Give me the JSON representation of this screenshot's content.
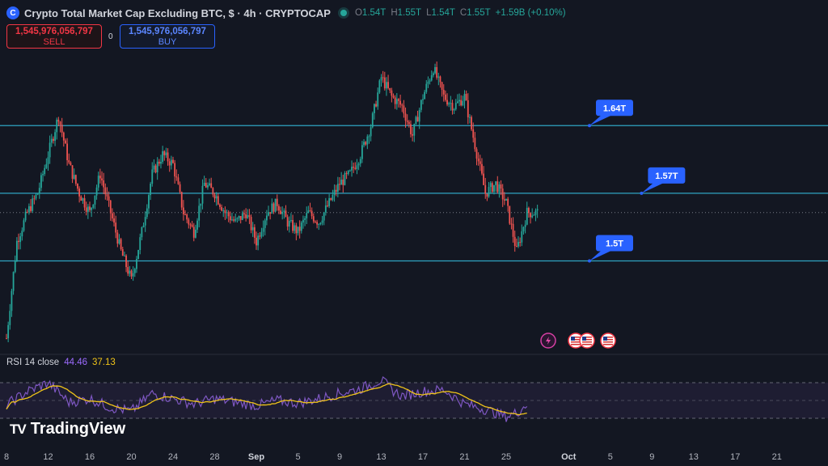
{
  "header": {
    "logo_glyph": "C",
    "title": "Crypto Total Market Cap Excluding BTC, $ · 4h · CRYPTOCAP",
    "ohlc": [
      {
        "key": "O",
        "value": "1.54T"
      },
      {
        "key": "H",
        "value": "1.55T"
      },
      {
        "key": "L",
        "value": "1.54T"
      },
      {
        "key": "C",
        "value": "1.55T"
      }
    ],
    "change": "+1.59B (+0.10%)"
  },
  "trade": {
    "sell_price": "1,545,976,056,797",
    "sell_label": "SELL",
    "spread": "0",
    "buy_price": "1,545,976,056,797",
    "buy_label": "BUY"
  },
  "rsi_legend": {
    "label": "RSI 14 close",
    "rsi_value": "44.46",
    "ma_value": "37.13"
  },
  "brand": {
    "name": "TradingView",
    "mark": "TV"
  },
  "colors": {
    "background": "#131722",
    "up": "#26a69a",
    "down": "#ef5350",
    "level_line": "#2fa4c2",
    "label_bg": "#2962ff",
    "rsi": "#7e57c2",
    "rsi_ma": "#f0c419"
  },
  "chart_data": {
    "type": "candlestick",
    "timeframe": "4h",
    "y_range": [
      1.41,
      1.77
    ],
    "x_range_day": [
      8,
      54
    ],
    "x_ticks": [
      "8",
      "12",
      "16",
      "20",
      "24",
      "28",
      "Sep",
      "5",
      "9",
      "13",
      "17",
      "21",
      "25",
      "Oct",
      "5",
      "9",
      "13",
      "17",
      "21"
    ],
    "x_tick_days": [
      8,
      12,
      16,
      20,
      24,
      28,
      32,
      36,
      40,
      44,
      48,
      52,
      56,
      62,
      66,
      70,
      74,
      78,
      82
    ],
    "anchors": [
      [
        8,
        1.42
      ],
      [
        9,
        1.52
      ],
      [
        10,
        1.55
      ],
      [
        11,
        1.57
      ],
      [
        13,
        1.65
      ],
      [
        14,
        1.6
      ],
      [
        15,
        1.57
      ],
      [
        16,
        1.55
      ],
      [
        17,
        1.59
      ],
      [
        18,
        1.55
      ],
      [
        19,
        1.51
      ],
      [
        20,
        1.48
      ],
      [
        21,
        1.53
      ],
      [
        22,
        1.59
      ],
      [
        23,
        1.61
      ],
      [
        24,
        1.6
      ],
      [
        25,
        1.55
      ],
      [
        26,
        1.53
      ],
      [
        27,
        1.58
      ],
      [
        28,
        1.57
      ],
      [
        29,
        1.55
      ],
      [
        30,
        1.54
      ],
      [
        31,
        1.55
      ],
      [
        32,
        1.52
      ],
      [
        33,
        1.55
      ],
      [
        34,
        1.56
      ],
      [
        35,
        1.54
      ],
      [
        36,
        1.53
      ],
      [
        37,
        1.55
      ],
      [
        38,
        1.54
      ],
      [
        39,
        1.56
      ],
      [
        40,
        1.58
      ],
      [
        41,
        1.59
      ],
      [
        42,
        1.61
      ],
      [
        43,
        1.64
      ],
      [
        44,
        1.69
      ],
      [
        45,
        1.67
      ],
      [
        46,
        1.66
      ],
      [
        47,
        1.63
      ],
      [
        48,
        1.67
      ],
      [
        49,
        1.7
      ],
      [
        50,
        1.67
      ],
      [
        51,
        1.66
      ],
      [
        52,
        1.67
      ],
      [
        53,
        1.62
      ],
      [
        54,
        1.57
      ],
      [
        55,
        1.58
      ],
      [
        56,
        1.56
      ],
      [
        57,
        1.51
      ],
      [
        58,
        1.55
      ],
      [
        59,
        1.55
      ]
    ],
    "levels": [
      {
        "label": "1.64T",
        "value": 1.64,
        "label_day": 64
      },
      {
        "label": "1.57T",
        "value": 1.57,
        "label_day": 69
      },
      {
        "label": "1.5T",
        "value": 1.5,
        "label_day": 64
      }
    ],
    "current_price": 1.55,
    "rsi": {
      "length": 14,
      "source": "close",
      "bands": [
        70,
        50,
        30
      ],
      "rsi_value": 44.46,
      "ma_value": 37.13,
      "anchors": [
        [
          8,
          45
        ],
        [
          10,
          60
        ],
        [
          12,
          70
        ],
        [
          14,
          48
        ],
        [
          16,
          52
        ],
        [
          18,
          42
        ],
        [
          20,
          38
        ],
        [
          22,
          58
        ],
        [
          24,
          52
        ],
        [
          26,
          46
        ],
        [
          28,
          52
        ],
        [
          30,
          48
        ],
        [
          32,
          44
        ],
        [
          34,
          50
        ],
        [
          36,
          47
        ],
        [
          38,
          52
        ],
        [
          40,
          58
        ],
        [
          42,
          63
        ],
        [
          44,
          73
        ],
        [
          45,
          62
        ],
        [
          46,
          55
        ],
        [
          48,
          60
        ],
        [
          50,
          62
        ],
        [
          52,
          46
        ],
        [
          54,
          40
        ],
        [
          56,
          32
        ],
        [
          57,
          36
        ],
        [
          58,
          46
        ]
      ]
    },
    "events": [
      "lightning-event-icon",
      "us-flag-event-icon",
      "us-flag-event-icon",
      "us-flag-event-icon"
    ]
  }
}
